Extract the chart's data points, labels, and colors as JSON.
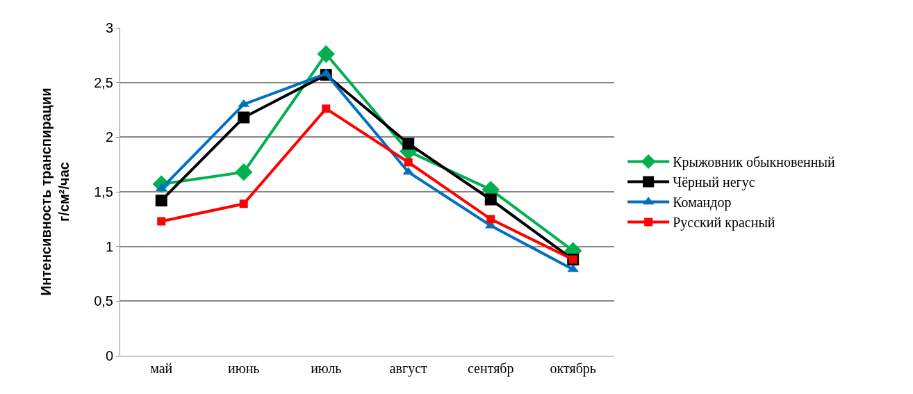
{
  "chart_data": {
    "type": "line",
    "ylabel": "Интенсивность транспирации\nг/см²/час",
    "categories": [
      "май",
      "июнь",
      "июль",
      "август",
      "сентябр",
      "октябрь"
    ],
    "series": [
      {
        "name": "Крыжовник обыкновенный",
        "color": "#00b050",
        "marker": "diamond",
        "values": [
          1.57,
          1.68,
          2.76,
          1.87,
          1.52,
          0.96
        ]
      },
      {
        "name": "Чёрный негус",
        "color": "#000000",
        "marker": "square",
        "values": [
          1.42,
          2.18,
          2.57,
          1.94,
          1.43,
          0.88
        ]
      },
      {
        "name": "Командор",
        "color": "#0070c0",
        "marker": "triangle",
        "values": [
          1.53,
          2.3,
          2.58,
          1.68,
          1.19,
          0.79
        ]
      },
      {
        "name": "Русский красный",
        "color": "#ff0000",
        "marker": "square",
        "values": [
          1.23,
          1.39,
          2.26,
          1.77,
          1.25,
          0.88
        ]
      }
    ],
    "ylim": [
      0,
      3
    ],
    "yticks": [
      {
        "value": 0,
        "label": "0"
      },
      {
        "value": 0.5,
        "label": "0,5"
      },
      {
        "value": 1,
        "label": "1"
      },
      {
        "value": 1.5,
        "label": "1,5"
      },
      {
        "value": 2,
        "label": "2"
      },
      {
        "value": 2.5,
        "label": "2,5"
      },
      {
        "value": 3,
        "label": "3"
      }
    ],
    "grid": "y",
    "legend": "right",
    "line_style": "solid"
  }
}
